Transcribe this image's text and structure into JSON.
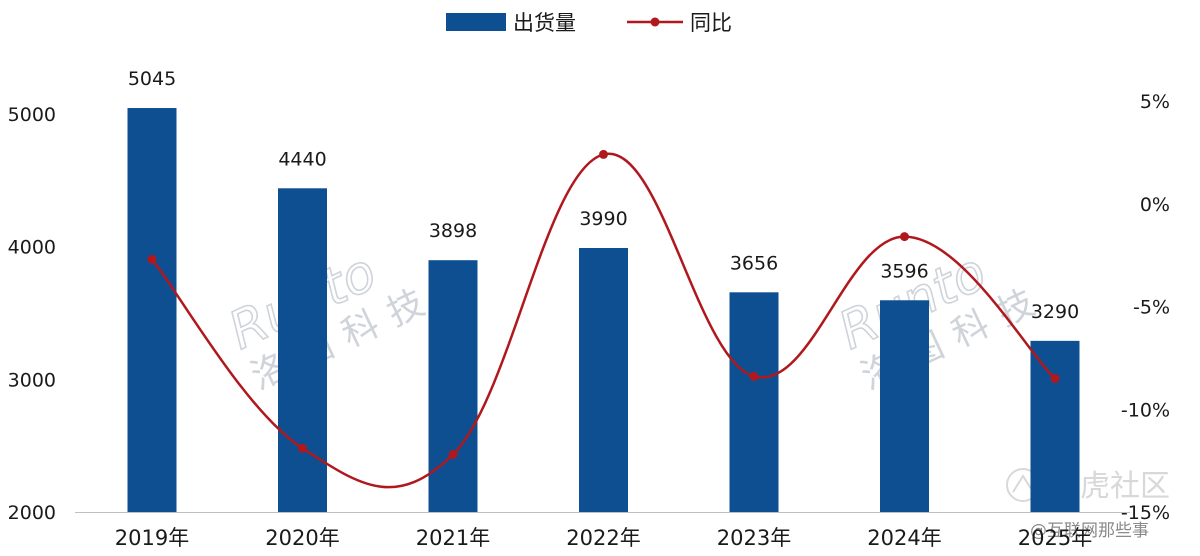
{
  "chart_data": {
    "type": "bar",
    "categories": [
      "2019年",
      "2020年",
      "2021年",
      "2022年",
      "2023年",
      "2024年",
      "2025年"
    ],
    "series": [
      {
        "name": "出货量",
        "type": "bar",
        "axis": "left",
        "color": "#0e4f92",
        "values": [
          5045,
          4440,
          3898,
          3990,
          3656,
          3596,
          3290
        ]
      },
      {
        "name": "同比",
        "type": "line",
        "axis": "right",
        "color": "#b0181e",
        "values": [
          -2.7,
          -11.9,
          -12.2,
          2.4,
          -8.4,
          -1.6,
          -8.5
        ]
      }
    ],
    "yleft": {
      "ylim": [
        2000,
        5000
      ],
      "ticks": [
        "2000",
        "3000",
        "4000",
        "5000"
      ]
    },
    "yright": {
      "ylim": [
        -15,
        5
      ],
      "ticks": [
        "-15%",
        "-10%",
        "-5%",
        "0%",
        "5%"
      ]
    },
    "legend": "top-center",
    "grid": false
  },
  "watermarks": {
    "runto": "Runto",
    "runto_cn": "洛图科技",
    "corner_main": "老虎社区",
    "corner_sub": "@互联网那些事"
  }
}
